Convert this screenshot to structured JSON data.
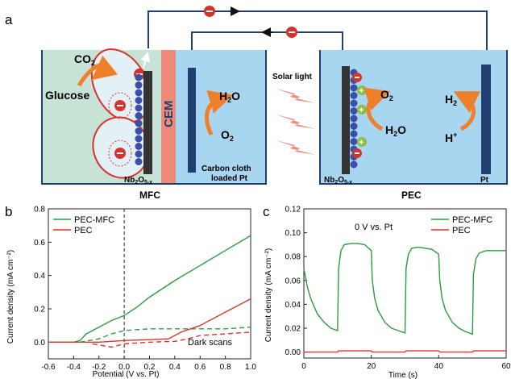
{
  "panel_a": {
    "panel_label": "a",
    "mfc": {
      "caption": "MFC",
      "co2": "CO",
      "co2_sub": "2",
      "glucose": "Glucose",
      "cem": "CEM",
      "h2o": "H",
      "h2o_sub": "2",
      "h2o_tail": "O",
      "o2": "O",
      "o2_sub": "2",
      "nb_label": "Nb",
      "nb_sub1": "2",
      "nb_mid": "O",
      "nb_sub2": "5-x",
      "cathode_line1": "Carbon cloth",
      "cathode_line2": "loaded Pt"
    },
    "solar_label": "Solar light",
    "pec": {
      "caption": "PEC",
      "o2": "O",
      "o2_sub": "2",
      "h2o": "H",
      "h2o_sub": "2",
      "h2o_tail": "O",
      "h2": "H",
      "h2_sub": "2",
      "hplus": "H",
      "hplus_sup": "+",
      "nb_label": "Nb",
      "nb_sub1": "2",
      "nb_mid": "O",
      "nb_sub2": "5-x",
      "pt_label": "Pt"
    },
    "colors": {
      "mfc_anolyte": "#c6e3d6",
      "mfc_catholyte": "#a8d6f0",
      "pec_fill": "#a8d6f0",
      "cem": "#f08a78",
      "wire": "#1f3f73",
      "arrow_orange": "#f07f2a",
      "electron_red": "#d8322c",
      "hole_green": "#8cbf3f",
      "bead_blue": "#3b4ea8"
    }
  },
  "chart_data": [
    {
      "type": "line",
      "panel_label": "b",
      "xlabel": "Potential (V vs. Pt)",
      "ylabel": "Current density (mA cm⁻²)",
      "xlim": [
        -0.6,
        1.0
      ],
      "ylim": [
        -0.1,
        0.8
      ],
      "xticks": [
        "-0.6",
        "-0.4",
        "-0.2",
        "0.0",
        "0.2",
        "0.4",
        "0.6",
        "0.8",
        "1.0"
      ],
      "yticks": [
        "0.0",
        "0.2",
        "0.4",
        "0.6",
        "0.8"
      ],
      "annotation": "Dark scans",
      "legend": "top-left",
      "series": [
        {
          "name": "PEC-MFC",
          "color": "#2e9a3e",
          "style": "solid",
          "x": [
            -0.6,
            -0.4,
            -0.35,
            -0.3,
            -0.2,
            -0.1,
            0.0,
            0.1,
            0.2,
            0.4,
            0.6,
            0.8,
            1.0
          ],
          "y": [
            0.0,
            0.0,
            0.01,
            0.05,
            0.09,
            0.13,
            0.16,
            0.21,
            0.27,
            0.37,
            0.46,
            0.55,
            0.64
          ]
        },
        {
          "name": "PEC",
          "color": "#e0322c",
          "style": "solid",
          "x": [
            -0.6,
            -0.2,
            0.0,
            0.2,
            0.35,
            0.45,
            0.6,
            0.8,
            1.0
          ],
          "y": [
            0.0,
            0.0,
            0.01,
            0.015,
            0.02,
            0.06,
            0.1,
            0.18,
            0.26
          ]
        },
        {
          "name": "",
          "color": "#2e9a3e",
          "style": "dashed",
          "x": [
            -0.35,
            -0.2,
            -0.1,
            0.0,
            0.2,
            0.4,
            0.6,
            0.8,
            1.0
          ],
          "y": [
            0.0,
            0.02,
            0.05,
            0.07,
            0.08,
            0.08,
            0.08,
            0.08,
            0.09
          ]
        },
        {
          "name": "",
          "color": "#e0322c",
          "style": "dashed",
          "x": [
            -0.25,
            -0.1,
            0.0,
            0.2,
            0.4,
            0.5,
            0.6,
            0.8,
            1.0
          ],
          "y": [
            -0.01,
            -0.03,
            -0.01,
            0.0,
            0.005,
            0.02,
            0.04,
            0.05,
            0.06
          ]
        }
      ]
    },
    {
      "type": "line",
      "panel_label": "c",
      "xlabel": "Time (s)",
      "ylabel": "Current density (mA cm⁻²)",
      "xlim": [
        0,
        60
      ],
      "ylim": [
        -0.005,
        0.12
      ],
      "xticks": [
        "0",
        "20",
        "40",
        "60"
      ],
      "yticks": [
        "0.00",
        "0.02",
        "0.04",
        "0.06",
        "0.08",
        "0.10",
        "0.12"
      ],
      "annotation": "0 V vs. Pt",
      "legend": "top-right",
      "series": [
        {
          "name": "PEC-MFC",
          "color": "#2e9a3e",
          "style": "solid",
          "x": [
            0,
            1,
            2,
            4,
            6,
            8,
            10,
            10.3,
            11,
            12,
            14,
            16,
            18,
            20,
            20.3,
            21,
            22,
            24,
            26,
            28,
            30,
            30.3,
            31,
            32,
            34,
            36,
            38,
            40,
            40.3,
            41,
            42,
            44,
            46,
            48,
            50,
            50.3,
            51,
            52,
            54,
            56,
            58,
            60
          ],
          "y": [
            0.07,
            0.055,
            0.045,
            0.032,
            0.025,
            0.02,
            0.018,
            0.07,
            0.085,
            0.09,
            0.091,
            0.091,
            0.09,
            0.085,
            0.06,
            0.045,
            0.035,
            0.025,
            0.02,
            0.018,
            0.016,
            0.07,
            0.082,
            0.087,
            0.088,
            0.087,
            0.086,
            0.082,
            0.06,
            0.045,
            0.035,
            0.025,
            0.02,
            0.017,
            0.015,
            0.065,
            0.078,
            0.083,
            0.085,
            0.085,
            0.085,
            0.085
          ]
        },
        {
          "name": "PEC",
          "color": "#e0322c",
          "style": "solid",
          "x": [
            0,
            10,
            10.3,
            20,
            20.3,
            30,
            30.3,
            40,
            40.3,
            50,
            50.3,
            60
          ],
          "y": [
            0.0,
            0.0,
            0.001,
            0.001,
            0.0,
            0.0,
            0.001,
            0.001,
            0.0,
            0.0,
            0.001,
            0.001
          ]
        }
      ]
    }
  ]
}
